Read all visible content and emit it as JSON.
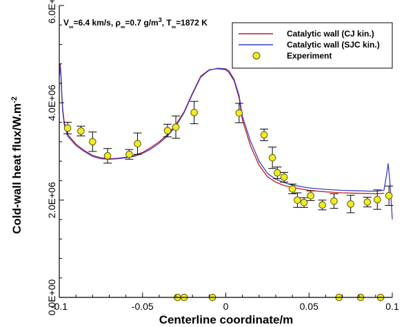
{
  "chart_data": {
    "type": "line",
    "title": "",
    "annotation": {
      "v_sym": "V",
      "v_sub": "∞",
      "v_val": "=6.4 km/s, ",
      "rho_sym": "ρ",
      "rho_sub": "∞",
      "rho_val": "=0.7 g/m",
      "rho_sup": "3",
      "rho_tail": ", ",
      "t_sym": "T",
      "t_sub": "∞",
      "t_val": "=1872 K"
    },
    "xlabel": "Centerline coordinate/m",
    "ylabel": "Cold-wall heat flux/W.m",
    "ylabel_sup": "-2",
    "xlim": [
      -0.1,
      0.1
    ],
    "ylim": [
      0,
      6000000
    ],
    "xticks": [
      {
        "v": -0.1,
        "label": "-0.1"
      },
      {
        "v": -0.05,
        "label": "-0.05"
      },
      {
        "v": 0,
        "label": "0"
      },
      {
        "v": 0.05,
        "label": "0.05"
      },
      {
        "v": 0.1,
        "label": "0.1"
      }
    ],
    "yticks": [
      {
        "v": 0,
        "label": "0.0E+00"
      },
      {
        "v": 2000000,
        "label": "2.0E+06"
      },
      {
        "v": 4000000,
        "label": "4.0E+06"
      },
      {
        "v": 6000000,
        "label": "6.0E+06"
      }
    ],
    "legend_position": "top-right",
    "colors": {
      "cj": "#c0181c",
      "sjc": "#3c3cc8",
      "marker_fill": "#f0ea2a",
      "marker_stroke": "#5a5a00"
    },
    "series": [
      {
        "name": "Catalytic wall (CJ kin.)",
        "kind": "line",
        "x": [
          -0.1,
          -0.0995,
          -0.099,
          -0.0985,
          -0.098,
          -0.097,
          -0.095,
          -0.09,
          -0.085,
          -0.08,
          -0.075,
          -0.07,
          -0.065,
          -0.06,
          -0.055,
          -0.05,
          -0.045,
          -0.04,
          -0.035,
          -0.03,
          -0.025,
          -0.02,
          -0.015,
          -0.01,
          -0.005,
          0,
          0.002,
          0.005,
          0.008,
          0.01,
          0.015,
          0.02,
          0.025,
          0.03,
          0.035,
          0.04,
          0.045,
          0.05,
          0.06,
          0.07,
          0.08,
          0.09,
          0.095
        ],
        "y": [
          4600000,
          4800000,
          4600000,
          4200000,
          3900000,
          3600000,
          3350000,
          3150000,
          3020000,
          2920000,
          2870000,
          2850000,
          2860000,
          2880000,
          2920000,
          2980000,
          3080000,
          3200000,
          3350000,
          3550000,
          3820000,
          4200000,
          4550000,
          4680000,
          4700000,
          4680000,
          4620000,
          4450000,
          4100000,
          3650000,
          3100000,
          2720000,
          2480000,
          2370000,
          2300000,
          2260000,
          2230000,
          2200000,
          2170000,
          2150000,
          2140000,
          2130000,
          2140000
        ]
      },
      {
        "name": "Catalytic wall (SJC kin.)",
        "kind": "line",
        "x": [
          -0.1,
          -0.0995,
          -0.099,
          -0.0985,
          -0.098,
          -0.097,
          -0.095,
          -0.09,
          -0.085,
          -0.08,
          -0.075,
          -0.07,
          -0.065,
          -0.06,
          -0.055,
          -0.05,
          -0.045,
          -0.04,
          -0.035,
          -0.03,
          -0.025,
          -0.02,
          -0.015,
          -0.01,
          -0.005,
          0,
          0.002,
          0.005,
          0.008,
          0.01,
          0.015,
          0.02,
          0.025,
          0.03,
          0.035,
          0.04,
          0.045,
          0.05,
          0.06,
          0.07,
          0.08,
          0.09,
          0.095,
          0.0965,
          0.0975,
          0.0985,
          0.0995,
          0.1
        ],
        "y": [
          4550000,
          4750000,
          4550000,
          4150000,
          3850000,
          3550000,
          3320000,
          3120000,
          3000000,
          2900000,
          2850000,
          2840000,
          2850000,
          2870000,
          2900000,
          2960000,
          3050000,
          3170000,
          3320000,
          3520000,
          3800000,
          4180000,
          4530000,
          4670000,
          4710000,
          4700000,
          4650000,
          4480000,
          4150000,
          3720000,
          3200000,
          2800000,
          2550000,
          2430000,
          2360000,
          2310000,
          2280000,
          2250000,
          2220000,
          2200000,
          2190000,
          2180000,
          2200000,
          2500000,
          2750000,
          2400000,
          1900000,
          1600000
        ]
      },
      {
        "name": "Experiment",
        "kind": "scatter",
        "points": [
          {
            "x": -0.095,
            "y": 3480000,
            "err": 120000
          },
          {
            "x": -0.087,
            "y": 3420000,
            "err": 100000
          },
          {
            "x": -0.08,
            "y": 3200000,
            "err": 200000
          },
          {
            "x": -0.071,
            "y": 2910000,
            "err": 150000
          },
          {
            "x": -0.058,
            "y": 2940000,
            "err": 100000
          },
          {
            "x": -0.053,
            "y": 3160000,
            "err": 220000
          },
          {
            "x": -0.035,
            "y": 3430000,
            "err": 130000
          },
          {
            "x": -0.03,
            "y": 3500000,
            "err": 230000
          },
          {
            "x": -0.019,
            "y": 3800000,
            "err": 230000
          },
          {
            "x": 0.008,
            "y": 3790000,
            "err": 200000
          },
          {
            "x": 0.023,
            "y": 3340000,
            "err": 120000
          },
          {
            "x": 0.028,
            "y": 2870000,
            "err": 220000
          },
          {
            "x": 0.031,
            "y": 2560000,
            "err": 120000
          },
          {
            "x": 0.035,
            "y": 2470000,
            "err": 100000
          },
          {
            "x": 0.04,
            "y": 2230000,
            "err": 100000
          },
          {
            "x": 0.043,
            "y": 2000000,
            "err": 150000
          },
          {
            "x": 0.047,
            "y": 1950000,
            "err": 100000
          },
          {
            "x": 0.051,
            "y": 2090000,
            "err": 100000
          },
          {
            "x": 0.058,
            "y": 1900000,
            "err": 100000
          },
          {
            "x": 0.065,
            "y": 1980000,
            "err": 150000
          },
          {
            "x": 0.075,
            "y": 1920000,
            "err": 180000
          },
          {
            "x": 0.085,
            "y": 1960000,
            "err": 100000
          },
          {
            "x": 0.091,
            "y": 2010000,
            "err": 200000
          },
          {
            "x": 0.098,
            "y": 2090000,
            "err": 200000
          },
          {
            "x": -0.029,
            "y": 0
          },
          {
            "x": -0.025,
            "y": 0
          },
          {
            "x": -0.008,
            "y": 0
          },
          {
            "x": 0.068,
            "y": 0
          },
          {
            "x": 0.081,
            "y": 0
          },
          {
            "x": 0.093,
            "y": 0
          }
        ]
      }
    ]
  }
}
